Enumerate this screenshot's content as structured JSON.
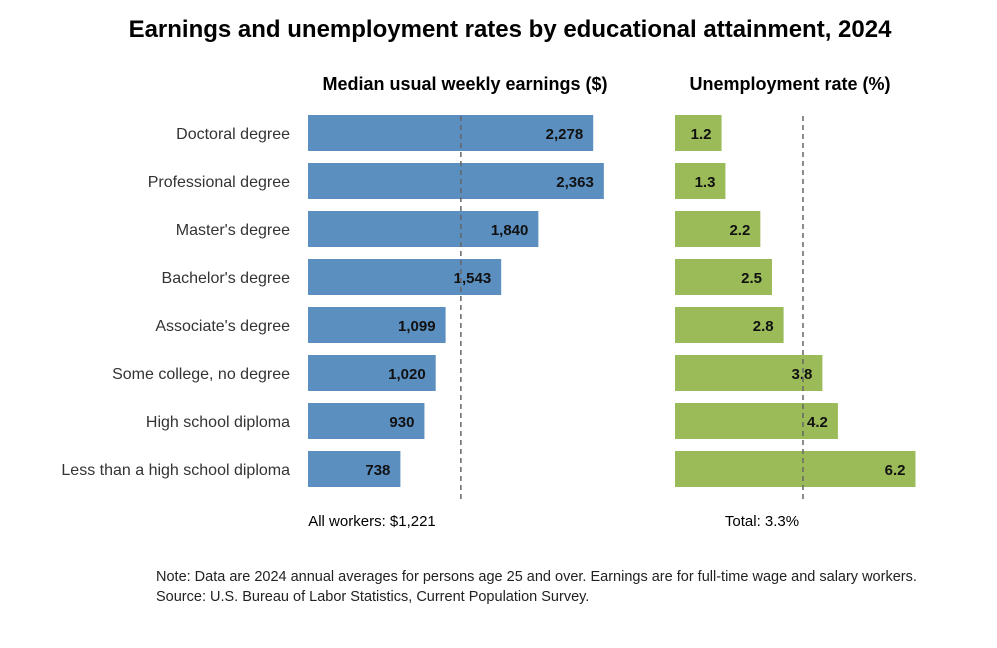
{
  "title": "Earnings and unemployment rates by educational attainment, 2024",
  "chart_data": [
    {
      "type": "bar",
      "orientation": "horizontal",
      "title": "Median usual weekly earnings ($)",
      "categories": [
        "Doctoral degree",
        "Professional degree",
        "Master's degree",
        "Bachelor's degree",
        "Associate's degree",
        "Some college, no degree",
        "High school diploma",
        "Less than a high school diploma"
      ],
      "values": [
        2278,
        2363,
        1840,
        1543,
        1099,
        1020,
        930,
        738
      ],
      "value_labels": [
        "2,278",
        "2,363",
        "1,840",
        "1,543",
        "1,099",
        "1,020",
        "930",
        "738"
      ],
      "reference_value": 1221,
      "reference_label": "All workers: $1,221",
      "color": "#5b8fc0",
      "xlim": [
        0,
        2500
      ]
    },
    {
      "type": "bar",
      "orientation": "horizontal",
      "title": "Unemployment rate (%)",
      "categories": [
        "Doctoral degree",
        "Professional degree",
        "Master's degree",
        "Bachelor's degree",
        "Associate's degree",
        "Some college, no degree",
        "High school diploma",
        "Less than a high school diploma"
      ],
      "values": [
        1.2,
        1.3,
        2.2,
        2.5,
        2.8,
        3.8,
        4.2,
        6.2
      ],
      "value_labels": [
        "1.2",
        "1.3",
        "2.2",
        "2.5",
        "2.8",
        "3.8",
        "4.2",
        "6.2"
      ],
      "reference_value": 3.3,
      "reference_label": "Total: 3.3%",
      "color": "#9bbb59",
      "xlim": [
        0,
        6.6
      ]
    }
  ],
  "notes": {
    "note": "Note: Data are 2024 annual averages for persons age 25 and over. Earnings are for full-time wage and salary workers.",
    "source": "Source: U.S. Bureau of Labor Statistics, Current Population Survey."
  }
}
